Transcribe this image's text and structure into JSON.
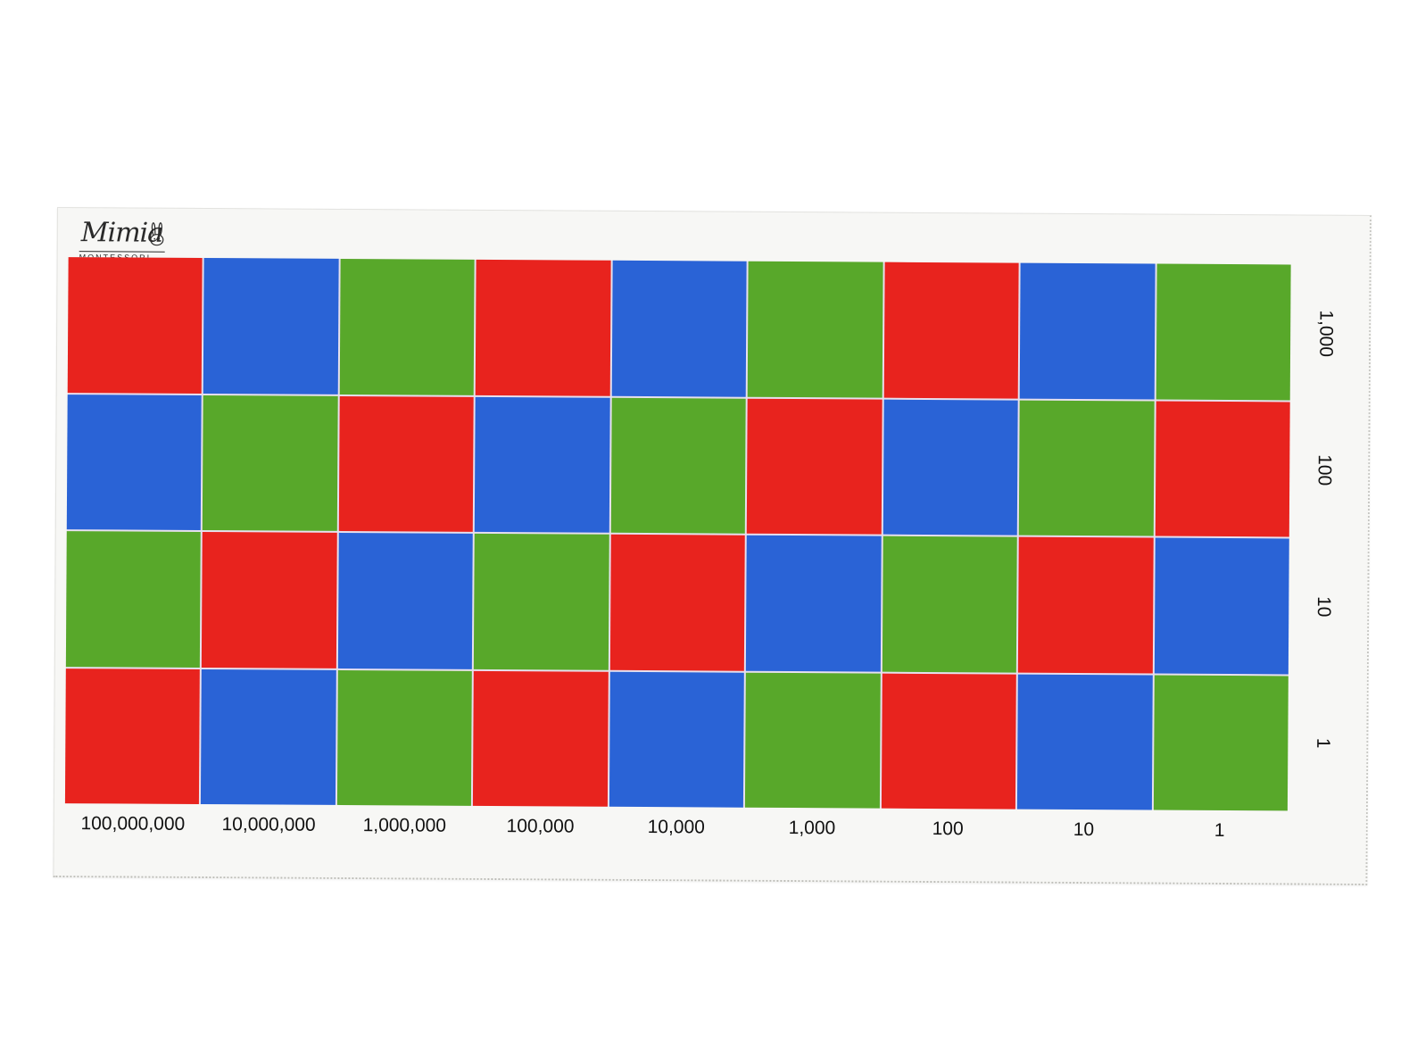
{
  "logo": {
    "text": "Mimia",
    "subtitle": "MONTESSORI"
  },
  "colors": {
    "red": "#e8231e",
    "blue": "#2a63d6",
    "green": "#58a82a",
    "background": "#ffffff",
    "mat": "#f7f7f5"
  },
  "row_labels": [
    "1,000",
    "100",
    "10",
    "1"
  ],
  "column_labels": [
    "100,000,000",
    "10,000,000",
    "1,000,000",
    "100,000",
    "10,000",
    "1,000",
    "100",
    "10",
    "1"
  ],
  "grid": [
    [
      "red",
      "blue",
      "green",
      "red",
      "blue",
      "green",
      "red",
      "blue",
      "green"
    ],
    [
      "blue",
      "green",
      "red",
      "blue",
      "green",
      "red",
      "blue",
      "green",
      "red"
    ],
    [
      "green",
      "red",
      "blue",
      "green",
      "red",
      "blue",
      "green",
      "red",
      "blue"
    ],
    [
      "red",
      "blue",
      "green",
      "red",
      "blue",
      "green",
      "red",
      "blue",
      "green"
    ]
  ]
}
